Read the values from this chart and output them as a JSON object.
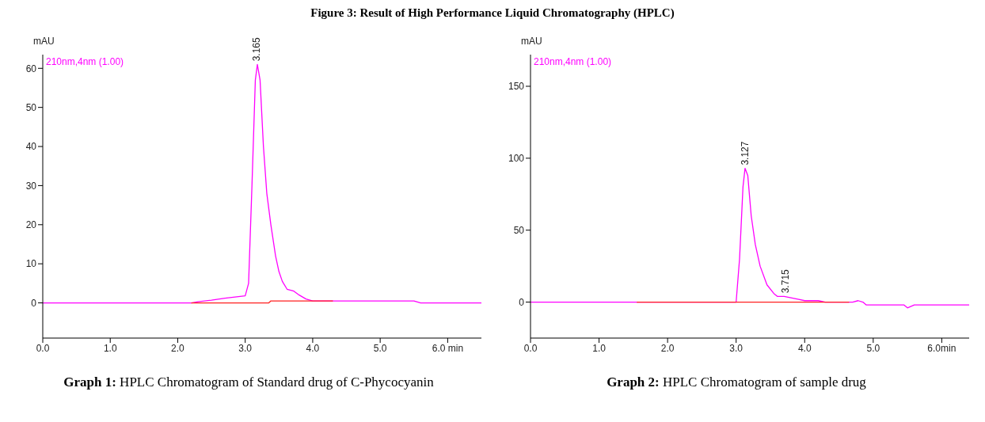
{
  "chart_data": [
    {
      "type": "line",
      "title": "Figure 3: Result of High Performance Liquid Chromatography (HPLC)",
      "ylabel": "mAU",
      "xlim": [
        0,
        6.5
      ],
      "xticks": [
        {
          "value": 0,
          "label": "0.0"
        },
        {
          "value": 1,
          "label": "1.0"
        },
        {
          "value": 2,
          "label": "2.0"
        },
        {
          "value": 3,
          "label": "3.0"
        },
        {
          "value": 4,
          "label": "4.0"
        },
        {
          "value": 5,
          "label": "5.0"
        },
        {
          "value": 6,
          "label": "6.0 min"
        }
      ],
      "ylim": [
        -9,
        63.5
      ],
      "yticks": [
        0,
        10,
        20,
        30,
        40,
        50,
        60
      ],
      "grid": false,
      "legend": false,
      "marker": "none",
      "series": [
        {
          "color": "#ff00ff",
          "x": [
            0,
            2.2,
            2.3,
            2.5,
            2.7,
            2.9,
            3.0,
            3.05,
            3.1,
            3.15,
            3.18,
            3.22,
            3.27,
            3.32,
            3.38,
            3.45,
            3.5,
            3.55,
            3.62,
            3.72,
            3.8,
            3.9,
            4.0,
            4.3,
            5.5,
            5.6,
            6.5
          ],
          "values": [
            0,
            0,
            0.3,
            0.7,
            1.2,
            1.6,
            1.8,
            5,
            30,
            57,
            61,
            57,
            40,
            28,
            20,
            12,
            8,
            5.5,
            3.5,
            3,
            2,
            1,
            0.5,
            0.5,
            0.5,
            0,
            0
          ]
        },
        {
          "color": "#ff2020",
          "x": [
            2.2,
            3.35,
            3.38,
            4.3
          ],
          "values": [
            0,
            0,
            0.5,
            0.5
          ]
        }
      ],
      "annotations": [
        "210nm,4nm (1.00)",
        {
          "text": "3.165",
          "x": 3.165,
          "y": 61
        },
        "Graph 1: HPLC Chromatogram of Standard drug of C-Phycocyanin"
      ]
    },
    {
      "type": "line",
      "ylabel": "mAU",
      "xlim": [
        0,
        6.4
      ],
      "xticks": [
        {
          "value": 0,
          "label": "0.0"
        },
        {
          "value": 1,
          "label": "1.0"
        },
        {
          "value": 2,
          "label": "2.0"
        },
        {
          "value": 3,
          "label": "3.0"
        },
        {
          "value": 4,
          "label": "4.0"
        },
        {
          "value": 5,
          "label": "5.0"
        },
        {
          "value": 6,
          "label": "6.0min"
        }
      ],
      "ylim": [
        -25,
        172
      ],
      "yticks": [
        0,
        50,
        100,
        150
      ],
      "grid": false,
      "legend": false,
      "marker": "none",
      "series": [
        {
          "color": "#ff00ff",
          "x": [
            0,
            3.0,
            3.05,
            3.1,
            3.13,
            3.17,
            3.22,
            3.28,
            3.35,
            3.45,
            3.55,
            3.6,
            3.7,
            3.8,
            3.9,
            4.0,
            4.2,
            4.3,
            4.7,
            4.78,
            4.85,
            4.9,
            5.45,
            5.5,
            5.6,
            6.4
          ],
          "values": [
            0,
            0,
            30,
            80,
            93,
            88,
            60,
            40,
            25,
            12,
            6,
            4,
            4,
            3,
            2,
            1,
            1,
            0,
            0,
            1,
            0,
            -2,
            -2,
            -4,
            -2,
            -2
          ]
        },
        {
          "color": "#ff2020",
          "x": [
            1.55,
            4.65
          ],
          "values": [
            0,
            0
          ]
        }
      ],
      "annotations": [
        "210nm,4nm (1.00)",
        {
          "text": "3.127",
          "x": 3.127,
          "y": 93
        },
        {
          "text": "3.715",
          "x": 3.715,
          "y": 4
        },
        "Graph 2: HPLC Chromatogram of sample drug"
      ]
    }
  ]
}
